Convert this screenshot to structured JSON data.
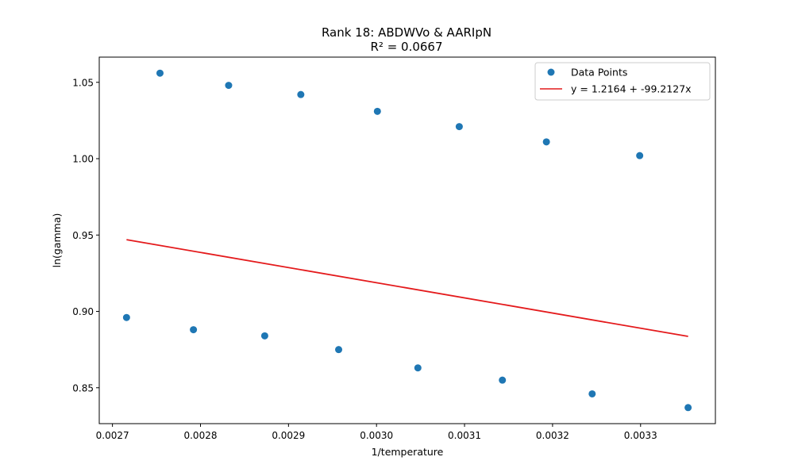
{
  "chart_data": {
    "type": "scatter",
    "title": "Rank 18: ABDWVo & AARIpN",
    "subtitle": "R² = 0.0667",
    "xlabel": "1/temperature",
    "ylabel": "ln(gamma)",
    "xlim": [
      0.002685,
      0.003385
    ],
    "ylim": [
      0.8265,
      1.0665
    ],
    "xticks": [
      0.0027,
      0.0028,
      0.0029,
      0.003,
      0.0031,
      0.0032,
      0.0033
    ],
    "xtick_labels": [
      "0.0027",
      "0.0028",
      "0.0029",
      "0.0030",
      "0.0031",
      "0.0032",
      "0.0033"
    ],
    "yticks": [
      0.85,
      0.9,
      0.95,
      1.0,
      1.05
    ],
    "ytick_labels": [
      "0.85",
      "0.90",
      "0.95",
      "1.00",
      "1.05"
    ],
    "grid": false,
    "legend_position": "top-right",
    "series": [
      {
        "name": "Data Points",
        "type": "scatter",
        "color": "#1f77b4",
        "points": [
          [
            0.002716,
            0.896
          ],
          [
            0.002754,
            1.056
          ],
          [
            0.002792,
            0.888
          ],
          [
            0.002832,
            1.048
          ],
          [
            0.002873,
            0.884
          ],
          [
            0.002914,
            1.042
          ],
          [
            0.002957,
            0.875
          ],
          [
            0.003001,
            1.031
          ],
          [
            0.003047,
            0.863
          ],
          [
            0.003094,
            1.021
          ],
          [
            0.003143,
            0.855
          ],
          [
            0.003193,
            1.011
          ],
          [
            0.003245,
            0.846
          ],
          [
            0.003299,
            1.002
          ],
          [
            0.003354,
            0.837
          ]
        ]
      },
      {
        "name": "y = 1.2164 + -99.2127x",
        "type": "line",
        "color": "#e41a1c",
        "intercept": 1.2164,
        "slope": -99.2127,
        "x_range": [
          0.002716,
          0.003354
        ]
      }
    ]
  }
}
